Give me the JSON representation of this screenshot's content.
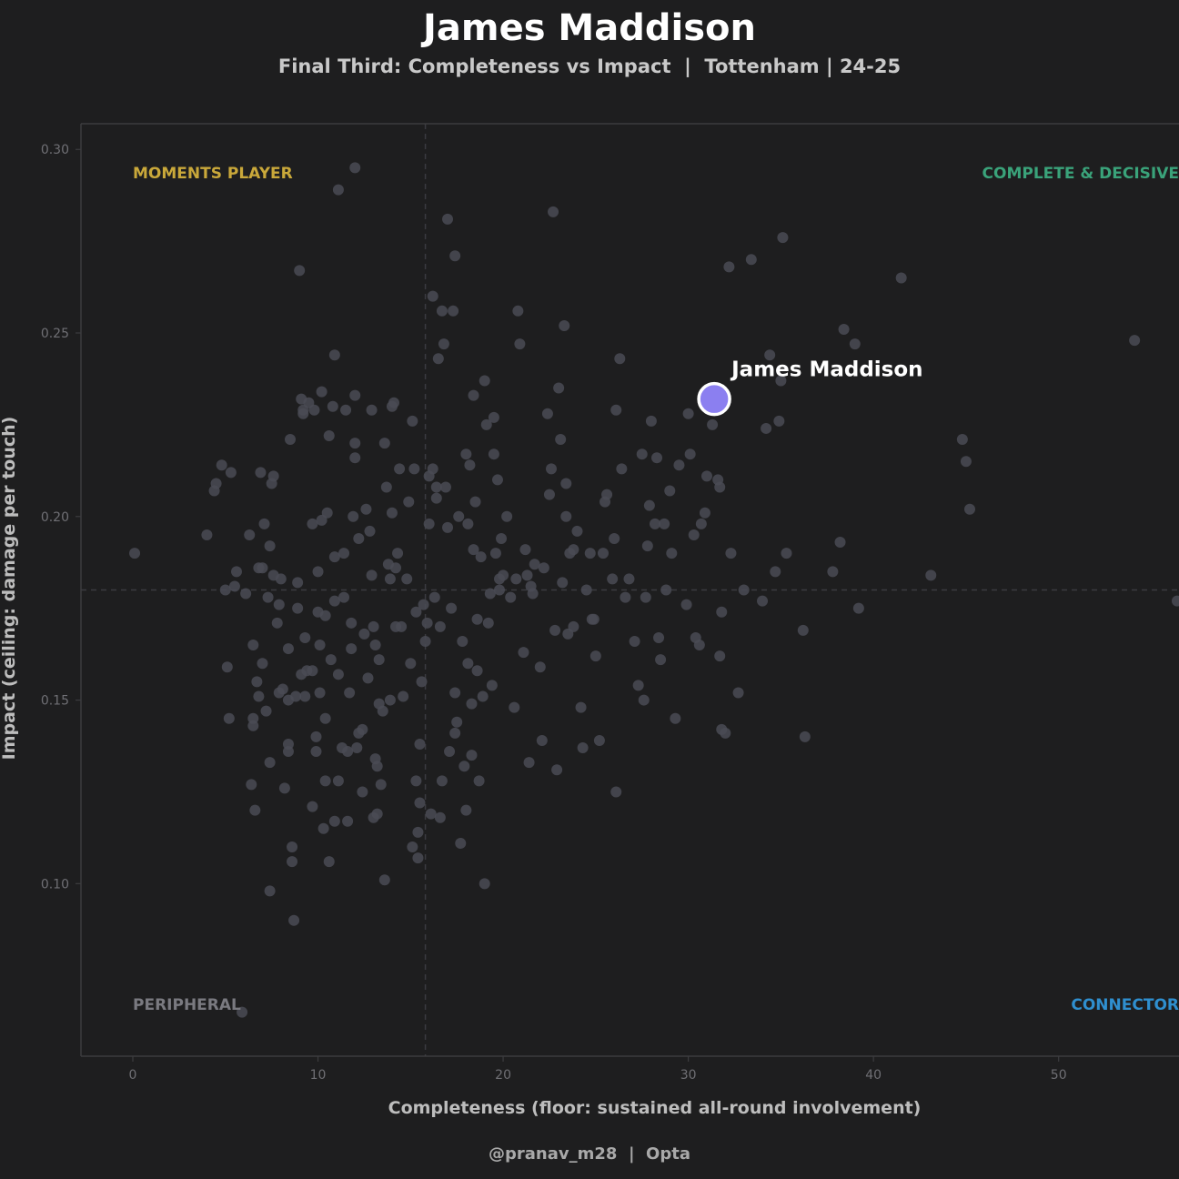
{
  "header": {
    "title": "James Maddison",
    "subtitle": "Final Third: Completeness vs Impact  |  Tottenham | 24-25"
  },
  "footer": {
    "credit": "@pranav_m28  |  Opta"
  },
  "chart_data": {
    "type": "scatter",
    "xlabel": "Completeness  (floor: sustained all-round involvement)",
    "ylabel": "Impact  (ceiling: damage per touch)",
    "xlim": [
      -2.8,
      56.5
    ],
    "ylim": [
      0.053,
      0.307
    ],
    "x_ticks": [
      0,
      10,
      20,
      30,
      40,
      50
    ],
    "y_ticks": [
      0.1,
      0.15,
      0.2,
      0.25,
      0.3
    ],
    "x_tick_labels": [
      "0",
      "10",
      "20",
      "30",
      "40",
      "50"
    ],
    "y_tick_labels": [
      "0.10",
      "0.15",
      "0.20",
      "0.25",
      "0.30"
    ],
    "reference_lines": {
      "x": 15.8,
      "y": 0.18
    },
    "grid": false,
    "quadrants": [
      {
        "label": "MOMENTS PLAYER",
        "position": "top-left",
        "color": "#c9a83a"
      },
      {
        "label": "COMPLETE & DECISIVE",
        "position": "top-right",
        "color": "#3aa37a"
      },
      {
        "label": "PERIPHERAL",
        "position": "bottom-left",
        "color": "#7a7a80"
      },
      {
        "label": "CONNECTOR",
        "position": "bottom-right",
        "color": "#2f8fcf"
      }
    ],
    "highlight": {
      "name": "James Maddison",
      "x": 31.4,
      "y": 0.232,
      "color": "#8b7ff0"
    },
    "colors": {
      "background": "#1e1e1f",
      "points": "#4a4b55",
      "axis": "#3c3c3f",
      "tick_text": "#6f6f74",
      "label_text": "#bdbdbd"
    },
    "points": [
      [
        0.1,
        0.19
      ],
      [
        4.0,
        0.195
      ],
      [
        4.5,
        0.209
      ],
      [
        4.4,
        0.207
      ],
      [
        4.8,
        0.214
      ],
      [
        5.0,
        0.18
      ],
      [
        5.1,
        0.159
      ],
      [
        5.2,
        0.145
      ],
      [
        5.3,
        0.212
      ],
      [
        5.6,
        0.185
      ],
      [
        5.5,
        0.181
      ],
      [
        5.9,
        0.065
      ],
      [
        6.1,
        0.179
      ],
      [
        6.3,
        0.195
      ],
      [
        6.4,
        0.127
      ],
      [
        6.5,
        0.165
      ],
      [
        6.5,
        0.145
      ],
      [
        6.5,
        0.143
      ],
      [
        6.6,
        0.12
      ],
      [
        6.7,
        0.155
      ],
      [
        6.8,
        0.151
      ],
      [
        6.8,
        0.186
      ],
      [
        6.9,
        0.212
      ],
      [
        7.0,
        0.16
      ],
      [
        7.0,
        0.186
      ],
      [
        7.1,
        0.198
      ],
      [
        7.2,
        0.147
      ],
      [
        7.3,
        0.178
      ],
      [
        7.4,
        0.098
      ],
      [
        7.4,
        0.133
      ],
      [
        7.4,
        0.192
      ],
      [
        7.5,
        0.209
      ],
      [
        7.6,
        0.184
      ],
      [
        7.6,
        0.211
      ],
      [
        7.8,
        0.171
      ],
      [
        7.9,
        0.176
      ],
      [
        7.9,
        0.152
      ],
      [
        8.0,
        0.183
      ],
      [
        8.1,
        0.153
      ],
      [
        8.2,
        0.126
      ],
      [
        8.4,
        0.15
      ],
      [
        8.4,
        0.164
      ],
      [
        8.4,
        0.138
      ],
      [
        8.4,
        0.136
      ],
      [
        8.5,
        0.221
      ],
      [
        8.6,
        0.11
      ],
      [
        8.6,
        0.106
      ],
      [
        8.7,
        0.09
      ],
      [
        8.8,
        0.151
      ],
      [
        8.9,
        0.182
      ],
      [
        8.9,
        0.175
      ],
      [
        9.0,
        0.267
      ],
      [
        9.1,
        0.157
      ],
      [
        9.1,
        0.232
      ],
      [
        9.2,
        0.229
      ],
      [
        9.2,
        0.228
      ],
      [
        9.3,
        0.167
      ],
      [
        9.3,
        0.151
      ],
      [
        9.4,
        0.158
      ],
      [
        9.7,
        0.198
      ],
      [
        9.7,
        0.158
      ],
      [
        9.7,
        0.121
      ],
      [
        9.8,
        0.229
      ],
      [
        9.9,
        0.14
      ],
      [
        9.9,
        0.136
      ],
      [
        10.0,
        0.174
      ],
      [
        10.0,
        0.185
      ],
      [
        10.1,
        0.165
      ],
      [
        10.1,
        0.152
      ],
      [
        10.2,
        0.234
      ],
      [
        10.2,
        0.199
      ],
      [
        10.3,
        0.115
      ],
      [
        10.4,
        0.145
      ],
      [
        10.4,
        0.128
      ],
      [
        10.4,
        0.173
      ],
      [
        10.5,
        0.201
      ],
      [
        10.6,
        0.222
      ],
      [
        10.6,
        0.106
      ],
      [
        10.7,
        0.161
      ],
      [
        10.8,
        0.23
      ],
      [
        10.9,
        0.117
      ],
      [
        10.9,
        0.189
      ],
      [
        10.9,
        0.244
      ],
      [
        10.9,
        0.177
      ],
      [
        11.1,
        0.289
      ],
      [
        11.1,
        0.128
      ],
      [
        11.1,
        0.157
      ],
      [
        11.3,
        0.137
      ],
      [
        11.4,
        0.178
      ],
      [
        11.4,
        0.19
      ],
      [
        11.5,
        0.229
      ],
      [
        11.6,
        0.117
      ],
      [
        11.6,
        0.136
      ],
      [
        11.7,
        0.152
      ],
      [
        11.8,
        0.164
      ],
      [
        11.8,
        0.171
      ],
      [
        11.9,
        0.2
      ],
      [
        12.0,
        0.295
      ],
      [
        12.0,
        0.233
      ],
      [
        12.0,
        0.22
      ],
      [
        12.0,
        0.216
      ],
      [
        12.1,
        0.137
      ],
      [
        12.2,
        0.141
      ],
      [
        12.2,
        0.194
      ],
      [
        12.4,
        0.125
      ],
      [
        12.4,
        0.142
      ],
      [
        12.5,
        0.168
      ],
      [
        12.6,
        0.202
      ],
      [
        12.7,
        0.156
      ],
      [
        12.8,
        0.196
      ],
      [
        12.9,
        0.229
      ],
      [
        12.9,
        0.184
      ],
      [
        13.0,
        0.17
      ],
      [
        13.1,
        0.165
      ],
      [
        13.1,
        0.134
      ],
      [
        13.2,
        0.119
      ],
      [
        13.2,
        0.132
      ],
      [
        13.3,
        0.149
      ],
      [
        13.3,
        0.161
      ],
      [
        13.4,
        0.127
      ],
      [
        13.5,
        0.147
      ],
      [
        13.6,
        0.101
      ],
      [
        13.6,
        0.22
      ],
      [
        13.7,
        0.208
      ],
      [
        13.8,
        0.187
      ],
      [
        13.9,
        0.15
      ],
      [
        13.9,
        0.183
      ],
      [
        14.0,
        0.201
      ],
      [
        14.0,
        0.23
      ],
      [
        14.1,
        0.231
      ],
      [
        14.2,
        0.186
      ],
      [
        14.2,
        0.17
      ],
      [
        14.4,
        0.213
      ],
      [
        14.5,
        0.17
      ],
      [
        14.6,
        0.151
      ],
      [
        14.8,
        0.183
      ],
      [
        14.9,
        0.204
      ],
      [
        15.0,
        0.16
      ],
      [
        15.1,
        0.226
      ],
      [
        15.1,
        0.11
      ],
      [
        15.2,
        0.213
      ],
      [
        15.3,
        0.174
      ],
      [
        15.3,
        0.128
      ],
      [
        15.4,
        0.114
      ],
      [
        15.4,
        0.107
      ],
      [
        15.5,
        0.138
      ],
      [
        15.5,
        0.122
      ],
      [
        15.6,
        0.155
      ],
      [
        15.7,
        0.176
      ],
      [
        15.8,
        0.166
      ],
      [
        15.9,
        0.171
      ],
      [
        16.0,
        0.198
      ],
      [
        16.0,
        0.211
      ],
      [
        16.1,
        0.119
      ],
      [
        16.2,
        0.213
      ],
      [
        16.2,
        0.26
      ],
      [
        16.3,
        0.178
      ],
      [
        16.4,
        0.208
      ],
      [
        16.4,
        0.205
      ],
      [
        16.5,
        0.243
      ],
      [
        16.6,
        0.17
      ],
      [
        16.6,
        0.118
      ],
      [
        16.7,
        0.256
      ],
      [
        16.8,
        0.247
      ],
      [
        16.9,
        0.208
      ],
      [
        17.0,
        0.281
      ],
      [
        17.0,
        0.197
      ],
      [
        17.1,
        0.136
      ],
      [
        17.2,
        0.175
      ],
      [
        17.3,
        0.256
      ],
      [
        17.4,
        0.152
      ],
      [
        17.4,
        0.271
      ],
      [
        17.5,
        0.144
      ],
      [
        17.6,
        0.2
      ],
      [
        17.7,
        0.111
      ],
      [
        17.8,
        0.166
      ],
      [
        17.9,
        0.132
      ],
      [
        18.0,
        0.217
      ],
      [
        18.0,
        0.12
      ],
      [
        18.1,
        0.16
      ],
      [
        18.1,
        0.198
      ],
      [
        18.2,
        0.214
      ],
      [
        18.3,
        0.135
      ],
      [
        18.3,
        0.149
      ],
      [
        18.4,
        0.233
      ],
      [
        18.4,
        0.191
      ],
      [
        18.5,
        0.204
      ],
      [
        18.6,
        0.172
      ],
      [
        18.7,
        0.128
      ],
      [
        18.8,
        0.189
      ],
      [
        18.9,
        0.151
      ],
      [
        19.0,
        0.1
      ],
      [
        19.0,
        0.237
      ],
      [
        19.1,
        0.225
      ],
      [
        19.2,
        0.171
      ],
      [
        19.3,
        0.179
      ],
      [
        19.4,
        0.154
      ],
      [
        19.5,
        0.217
      ],
      [
        19.5,
        0.227
      ],
      [
        19.6,
        0.19
      ],
      [
        19.7,
        0.21
      ],
      [
        19.8,
        0.18
      ],
      [
        19.9,
        0.194
      ],
      [
        20.0,
        0.184
      ],
      [
        20.2,
        0.2
      ],
      [
        20.4,
        0.178
      ],
      [
        20.6,
        0.148
      ],
      [
        20.7,
        0.183
      ],
      [
        20.8,
        0.256
      ],
      [
        20.9,
        0.247
      ],
      [
        21.1,
        0.163
      ],
      [
        21.2,
        0.191
      ],
      [
        21.3,
        0.184
      ],
      [
        21.4,
        0.133
      ],
      [
        21.6,
        0.179
      ],
      [
        21.7,
        0.187
      ],
      [
        22.0,
        0.159
      ],
      [
        22.1,
        0.139
      ],
      [
        22.2,
        0.186
      ],
      [
        22.4,
        0.228
      ],
      [
        22.5,
        0.206
      ],
      [
        22.6,
        0.213
      ],
      [
        22.7,
        0.283
      ],
      [
        22.8,
        0.169
      ],
      [
        22.9,
        0.131
      ],
      [
        23.0,
        0.235
      ],
      [
        23.1,
        0.221
      ],
      [
        23.2,
        0.182
      ],
      [
        23.3,
        0.252
      ],
      [
        23.4,
        0.2
      ],
      [
        23.4,
        0.209
      ],
      [
        23.5,
        0.168
      ],
      [
        23.6,
        0.19
      ],
      [
        23.8,
        0.17
      ],
      [
        24.0,
        0.196
      ],
      [
        24.2,
        0.148
      ],
      [
        24.3,
        0.137
      ],
      [
        24.5,
        0.18
      ],
      [
        24.7,
        0.19
      ],
      [
        24.9,
        0.172
      ],
      [
        25.0,
        0.162
      ],
      [
        25.2,
        0.139
      ],
      [
        25.4,
        0.19
      ],
      [
        25.5,
        0.204
      ],
      [
        25.6,
        0.206
      ],
      [
        25.9,
        0.183
      ],
      [
        26.0,
        0.194
      ],
      [
        26.1,
        0.125
      ],
      [
        26.1,
        0.229
      ],
      [
        26.3,
        0.243
      ],
      [
        26.4,
        0.213
      ],
      [
        26.6,
        0.178
      ],
      [
        26.8,
        0.183
      ],
      [
        27.1,
        0.166
      ],
      [
        27.3,
        0.154
      ],
      [
        27.5,
        0.217
      ],
      [
        27.6,
        0.15
      ],
      [
        27.7,
        0.178
      ],
      [
        27.8,
        0.192
      ],
      [
        27.9,
        0.203
      ],
      [
        28.0,
        0.226
      ],
      [
        28.2,
        0.198
      ],
      [
        28.3,
        0.216
      ],
      [
        28.4,
        0.167
      ],
      [
        28.5,
        0.161
      ],
      [
        28.7,
        0.198
      ],
      [
        28.8,
        0.18
      ],
      [
        29.0,
        0.207
      ],
      [
        29.1,
        0.19
      ],
      [
        29.3,
        0.145
      ],
      [
        29.5,
        0.214
      ],
      [
        29.9,
        0.176
      ],
      [
        30.0,
        0.228
      ],
      [
        30.1,
        0.217
      ],
      [
        30.3,
        0.195
      ],
      [
        30.4,
        0.167
      ],
      [
        30.6,
        0.165
      ],
      [
        30.7,
        0.198
      ],
      [
        30.9,
        0.201
      ],
      [
        31.0,
        0.211
      ],
      [
        31.3,
        0.225
      ],
      [
        31.6,
        0.21
      ],
      [
        31.7,
        0.162
      ],
      [
        31.7,
        0.208
      ],
      [
        31.8,
        0.174
      ],
      [
        31.8,
        0.142
      ],
      [
        32.0,
        0.141
      ],
      [
        32.2,
        0.268
      ],
      [
        32.3,
        0.19
      ],
      [
        32.7,
        0.152
      ],
      [
        33.0,
        0.18
      ],
      [
        33.4,
        0.27
      ],
      [
        34.0,
        0.177
      ],
      [
        34.2,
        0.224
      ],
      [
        34.4,
        0.244
      ],
      [
        34.7,
        0.185
      ],
      [
        34.9,
        0.226
      ],
      [
        35.0,
        0.237
      ],
      [
        35.1,
        0.276
      ],
      [
        35.3,
        0.19
      ],
      [
        36.2,
        0.169
      ],
      [
        36.3,
        0.14
      ],
      [
        37.8,
        0.185
      ],
      [
        38.2,
        0.193
      ],
      [
        38.4,
        0.251
      ],
      [
        39.0,
        0.247
      ],
      [
        39.2,
        0.175
      ],
      [
        41.5,
        0.265
      ],
      [
        43.1,
        0.184
      ],
      [
        44.8,
        0.221
      ],
      [
        45.0,
        0.215
      ],
      [
        45.2,
        0.202
      ],
      [
        54.1,
        0.248
      ],
      [
        56.4,
        0.177
      ],
      [
        13.0,
        0.118
      ],
      [
        14.3,
        0.19
      ],
      [
        16.7,
        0.128
      ],
      [
        17.4,
        0.141
      ],
      [
        18.6,
        0.158
      ],
      [
        19.8,
        0.183
      ],
      [
        21.5,
        0.181
      ],
      [
        23.8,
        0.191
      ],
      [
        24.8,
        0.172
      ],
      [
        9.5,
        0.231
      ]
    ]
  }
}
